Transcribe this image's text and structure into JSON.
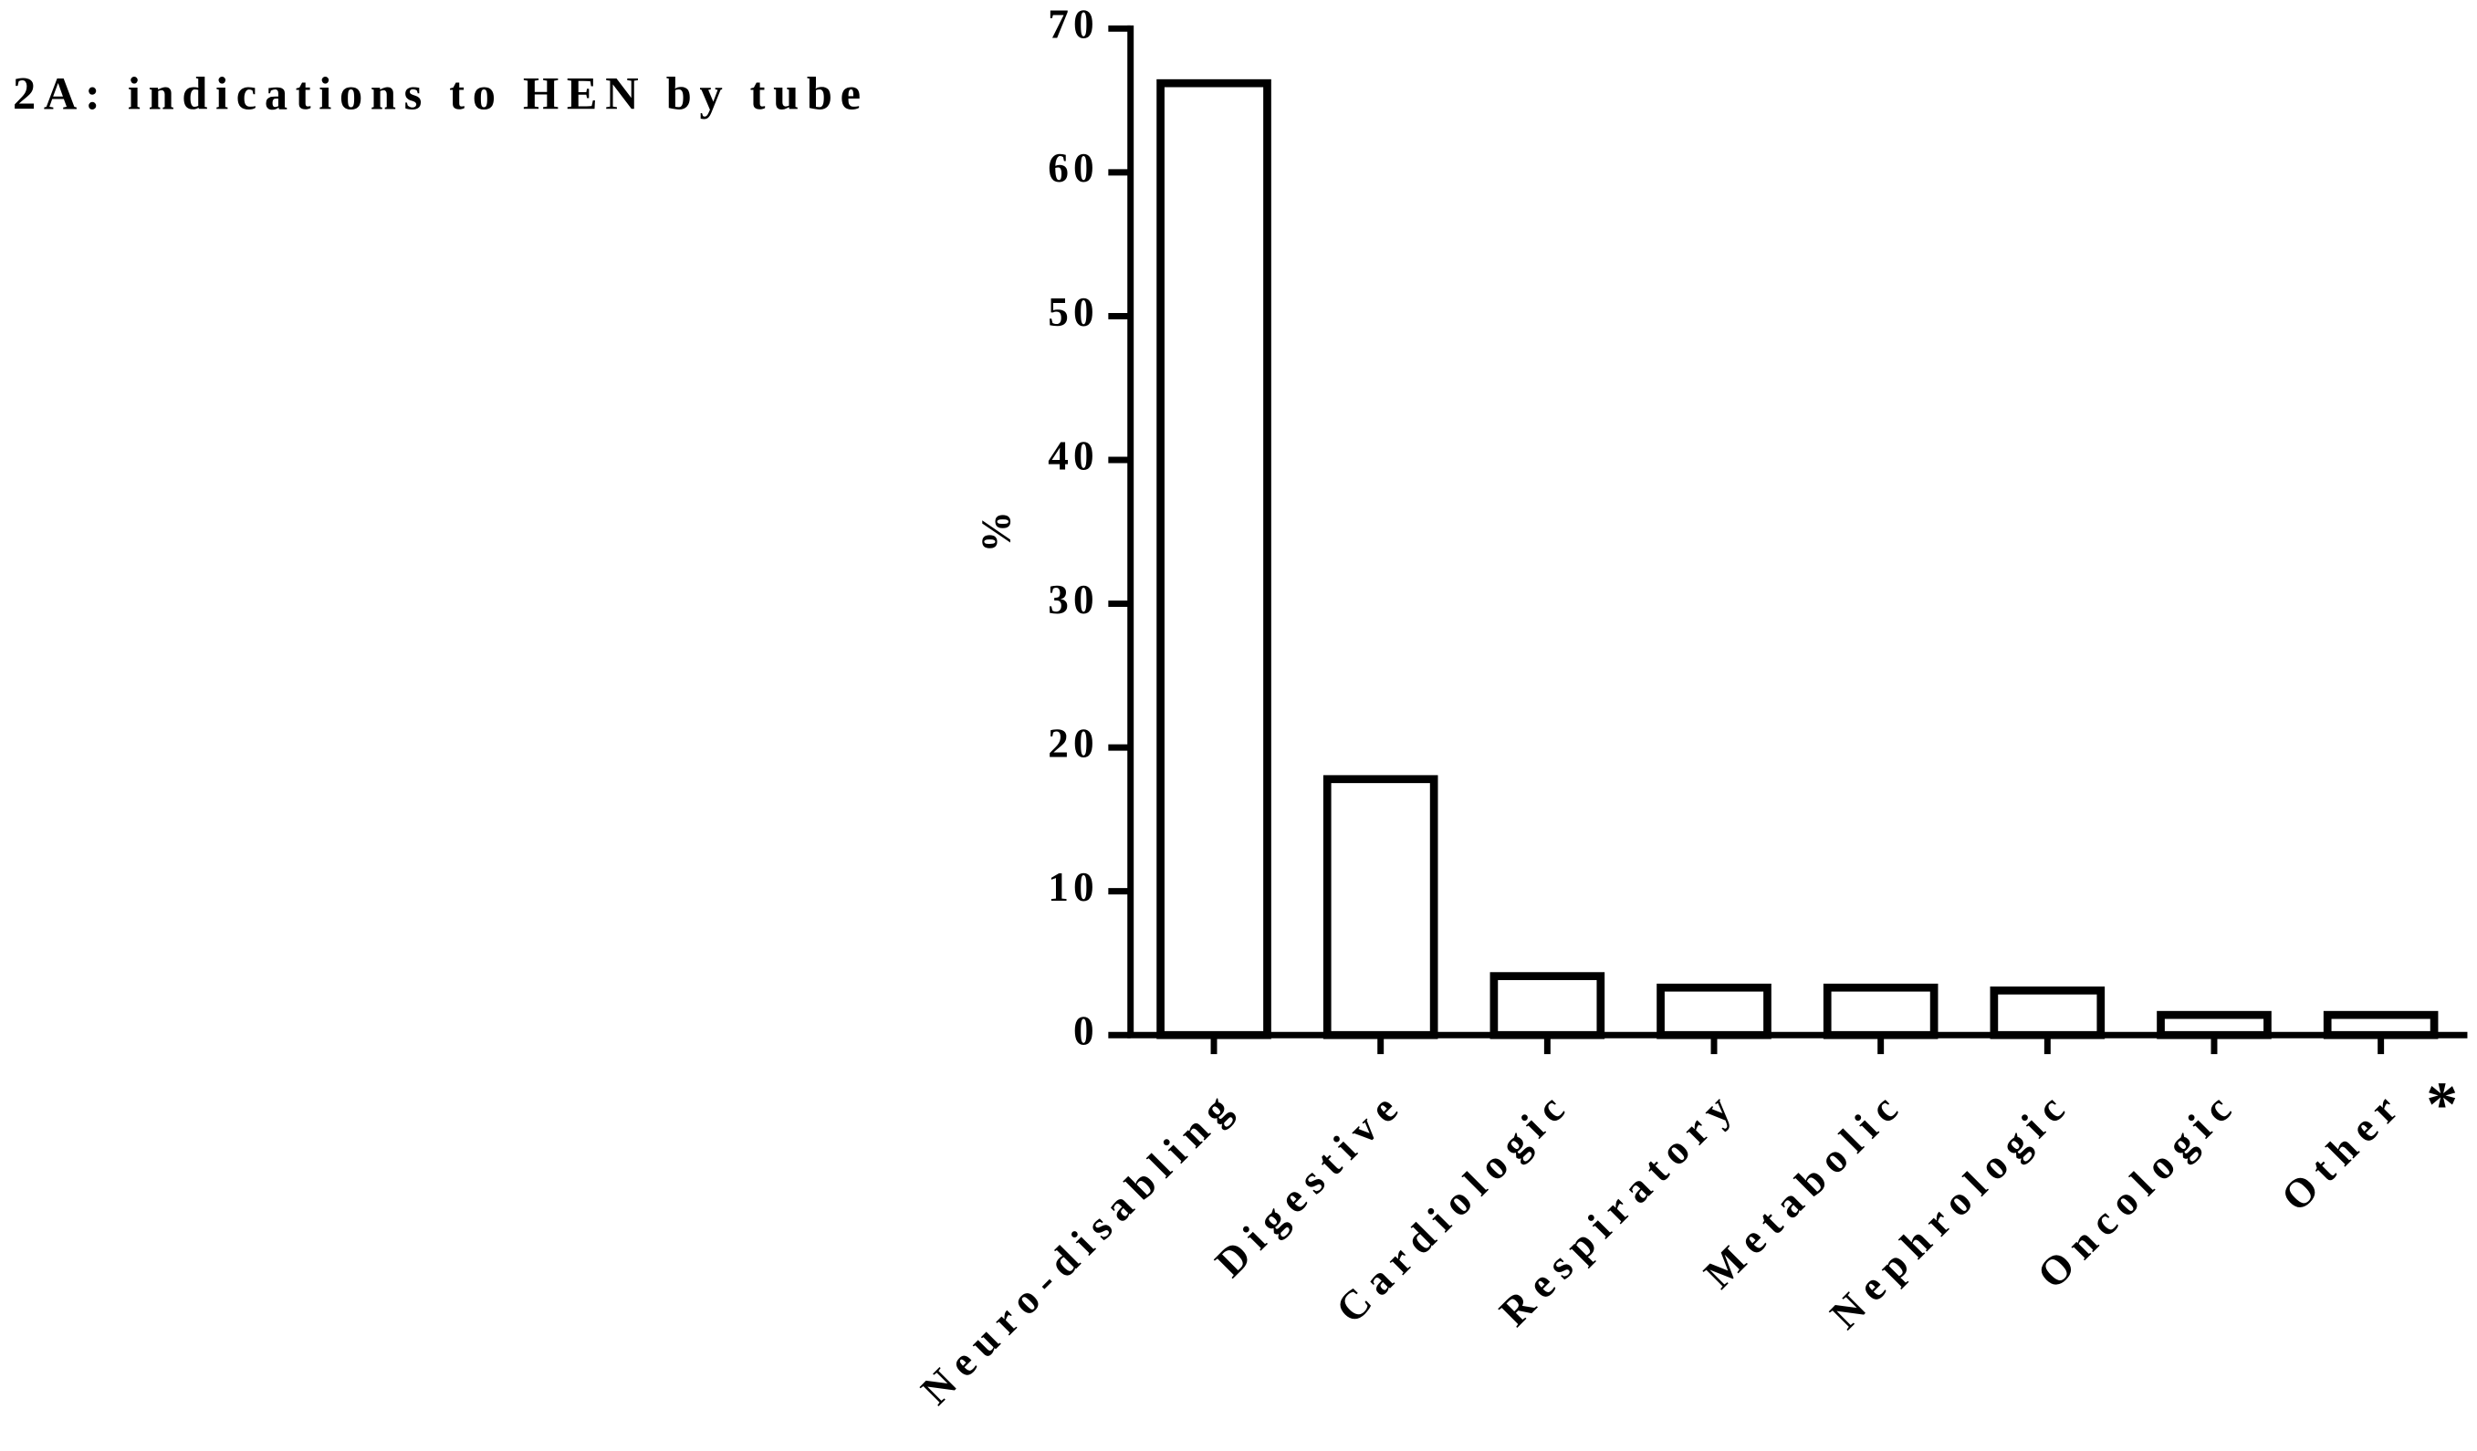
{
  "chart_data": {
    "type": "bar",
    "title": "2A: indications to HEN by tube",
    "y_label": "%",
    "categories": [
      "Neuro-disabling",
      "Digestive",
      "Cardiologic",
      "Respiratory",
      "Metabolic",
      "Nephrologic",
      "Oncologic",
      "Other"
    ],
    "values": [
      66.2,
      17.8,
      4.1,
      3.3,
      3.3,
      3.1,
      1.4,
      1.4
    ],
    "color": "#ffffff",
    "edge_color": "#000000",
    "ylim": [
      0,
      70
    ],
    "yticks": [
      0,
      10,
      20,
      30,
      40,
      50,
      60,
      70
    ],
    "annotation": "*"
  }
}
